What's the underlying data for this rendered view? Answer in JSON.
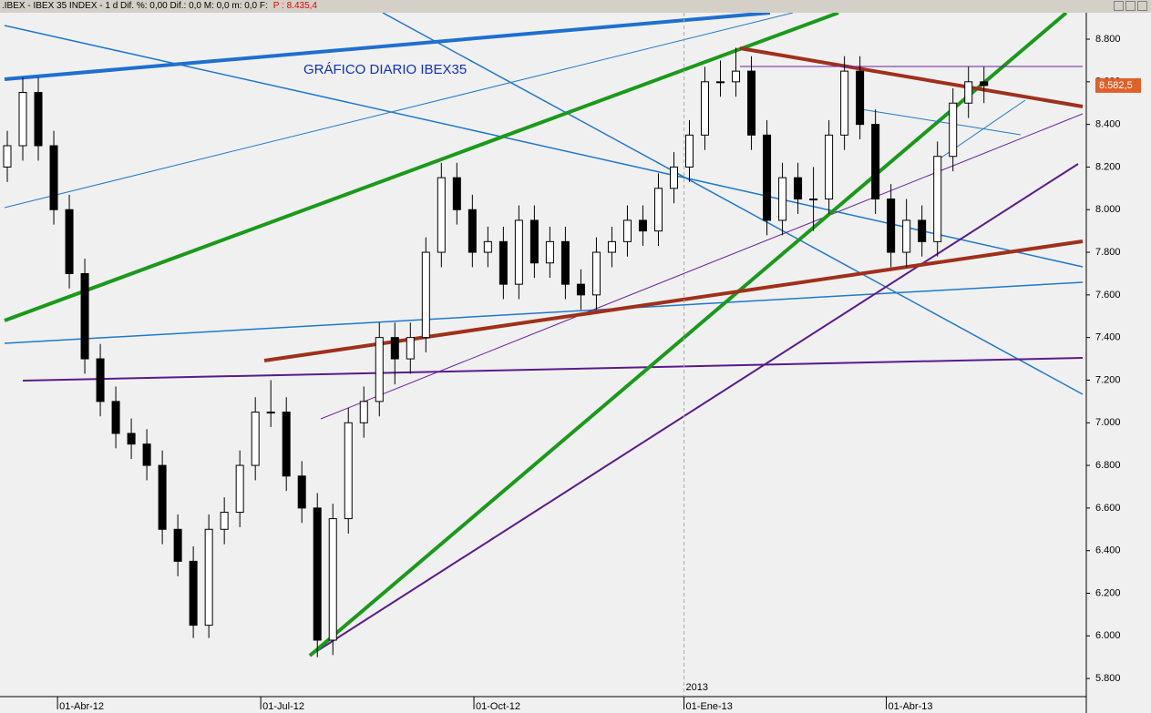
{
  "header": {
    "title": ".IBEX - IBEX 35 INDEX - 1 d Dif. %: 0,00 Dif.: 0,0 M: 0,0 m: 0,0 F:",
    "price": "P : 8.435,4"
  },
  "chart_data": {
    "type": "candlestick",
    "annotation": "GRÁFICO DIARIO IBEX35",
    "last_price_label": "8.582,5",
    "x": [
      0,
      1,
      2,
      3,
      4,
      5,
      6,
      7,
      8,
      9,
      10,
      11,
      12,
      13,
      14,
      15,
      16,
      17,
      18,
      19,
      20,
      21,
      22,
      23,
      24,
      25,
      26,
      27,
      28,
      29,
      30,
      31,
      32,
      33,
      34,
      35,
      36,
      37,
      38,
      39,
      40,
      41,
      42,
      43,
      44,
      45,
      46,
      47,
      48,
      49,
      50,
      51,
      52,
      53,
      54,
      55,
      56,
      57,
      58,
      59,
      60,
      61,
      62,
      63
    ],
    "open": [
      8200,
      8300,
      8550,
      8300,
      8000,
      7700,
      7300,
      7100,
      6950,
      6900,
      6800,
      6500,
      6350,
      6050,
      6500,
      6580,
      6800,
      7050,
      7050,
      6750,
      6600,
      5980,
      6550,
      7000,
      7100,
      7400,
      7300,
      7400,
      7800,
      8150,
      8000,
      7800,
      7850,
      7650,
      7950,
      7750,
      7850,
      7650,
      7600,
      7800,
      7850,
      7950,
      7900,
      8100,
      8200,
      8350,
      8600,
      8600,
      8650,
      8350,
      7950,
      8150,
      8050,
      8050,
      8350,
      8650,
      8400,
      8050,
      7800,
      7950,
      7850,
      8250,
      8500,
      8600
    ],
    "high": [
      8370,
      8620,
      8620,
      8370,
      8070,
      7770,
      7370,
      7170,
      7020,
      6970,
      6870,
      6570,
      6420,
      6570,
      6650,
      6870,
      7120,
      7200,
      7120,
      6820,
      6670,
      6620,
      7070,
      7170,
      7470,
      7470,
      7470,
      7870,
      8220,
      8220,
      8070,
      7920,
      7920,
      8020,
      8020,
      7920,
      7920,
      7720,
      7870,
      7920,
      8020,
      8020,
      8170,
      8270,
      8420,
      8670,
      8700,
      8760,
      8720,
      8420,
      8220,
      8220,
      8200,
      8420,
      8720,
      8720,
      8470,
      8120,
      8050,
      8020,
      8320,
      8570,
      8670,
      8670
    ],
    "low": [
      8130,
      8230,
      8230,
      7930,
      7630,
      7230,
      7030,
      6880,
      6830,
      6730,
      6430,
      6280,
      5990,
      5990,
      6430,
      6510,
      6730,
      6980,
      6680,
      6530,
      5900,
      5910,
      6480,
      6930,
      7030,
      7180,
      7230,
      7330,
      7730,
      7930,
      7730,
      7730,
      7580,
      7580,
      7680,
      7680,
      7580,
      7530,
      7530,
      7730,
      7780,
      7830,
      7830,
      8030,
      8130,
      8280,
      8530,
      8530,
      8280,
      7880,
      7880,
      7980,
      7900,
      7980,
      8280,
      8330,
      7980,
      7730,
      7730,
      7780,
      7780,
      8180,
      8430,
      8500
    ],
    "close": [
      8300,
      8550,
      8300,
      8000,
      7700,
      7300,
      7100,
      6950,
      6900,
      6800,
      6500,
      6350,
      6050,
      6500,
      6580,
      6800,
      7050,
      7050,
      6750,
      6600,
      5980,
      6550,
      7000,
      7100,
      7400,
      7300,
      7400,
      7800,
      8150,
      8000,
      7800,
      7850,
      7650,
      7950,
      7750,
      7850,
      7650,
      7600,
      7800,
      7850,
      7950,
      7900,
      8100,
      8200,
      8350,
      8600,
      8600,
      8650,
      8350,
      7950,
      8150,
      8050,
      8050,
      8350,
      8650,
      8400,
      8050,
      7800,
      7950,
      7850,
      8250,
      8500,
      8600,
      8582.5
    ],
    "ylim": [
      5715,
      8924
    ],
    "yticks": [
      {
        "value": 5800,
        "label": "5.800"
      },
      {
        "value": 6000,
        "label": "6.000"
      },
      {
        "value": 6200,
        "label": "6.200"
      },
      {
        "value": 6400,
        "label": "6.400"
      },
      {
        "value": 6600,
        "label": "6.600"
      },
      {
        "value": 6800,
        "label": "6.800"
      },
      {
        "value": 7000,
        "label": "7.000"
      },
      {
        "value": 7200,
        "label": "7.200"
      },
      {
        "value": 7400,
        "label": "7.400"
      },
      {
        "value": 7600,
        "label": "7.600"
      },
      {
        "value": 7800,
        "label": "7.800"
      },
      {
        "value": 8000,
        "label": "8.000"
      },
      {
        "value": 8200,
        "label": "8.200"
      },
      {
        "value": 8400,
        "label": "8.400"
      },
      {
        "value": 8600,
        "label": "8.600"
      },
      {
        "value": 8800,
        "label": "8.800"
      }
    ],
    "xlim": [
      -0.47,
      69.6
    ],
    "xticks": [
      {
        "value": 3.24,
        "label": "01-Abr-12"
      },
      {
        "value": 16.35,
        "label": "01-Jul-12"
      },
      {
        "value": 30.1,
        "label": "01-Oct-12"
      },
      {
        "value": 43.65,
        "label": "01-Ene-13"
      },
      {
        "value": 56.7,
        "label": "01-Abr-13"
      }
    ],
    "year_marker": {
      "value": 43.65,
      "label": "2013"
    }
  }
}
